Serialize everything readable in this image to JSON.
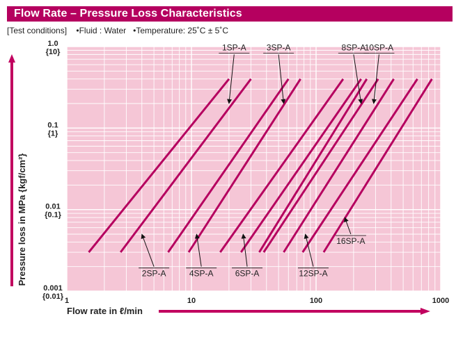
{
  "header": {
    "title": "Flow Rate – Pressure Loss Characteristics"
  },
  "conditions": {
    "label": "[Test conditions]",
    "fluid": "•Fluid : Water",
    "temperature": "•Temperature: 25˚C ± 5˚C"
  },
  "colors": {
    "title_bar": "#b5005f",
    "plot_bg": "#f5c6d6",
    "series": "#b5005f",
    "arrow": "#c1005f"
  },
  "chart_data": {
    "type": "line",
    "xscale": "log",
    "yscale": "log",
    "xlim": [
      1,
      1000
    ],
    "ylim": [
      0.001,
      1.0
    ],
    "grid": true,
    "xlabel": "Flow rate in ℓ/min",
    "ylabel": "Pressure loss in MPa {kgf/cm²}",
    "xticks": [
      {
        "value": 1,
        "label": "1"
      },
      {
        "value": 10,
        "label": "10"
      },
      {
        "value": 100,
        "label": "100"
      },
      {
        "value": 1000,
        "label": "1000"
      }
    ],
    "yticks": [
      {
        "value": 1.0,
        "label": "1.0",
        "sub": "{10}"
      },
      {
        "value": 0.1,
        "label": "0.1",
        "sub": "{1}"
      },
      {
        "value": 0.01,
        "label": "0.01",
        "sub": "{0.1}"
      },
      {
        "value": 0.001,
        "label": "0.001",
        "sub": "{0.01}"
      }
    ],
    "series": [
      {
        "name": "1SP-A",
        "x": [
          1.5,
          20
        ],
        "y": [
          0.003,
          0.4
        ]
      },
      {
        "name": "2SP-A",
        "x": [
          2.7,
          30
        ],
        "y": [
          0.003,
          0.4
        ]
      },
      {
        "name": "3SP-A",
        "x": [
          6.5,
          60
        ],
        "y": [
          0.003,
          0.4
        ]
      },
      {
        "name": "4SP-A",
        "x": [
          9.5,
          75
        ],
        "y": [
          0.003,
          0.4
        ]
      },
      {
        "name": "6SP-A",
        "x": [
          17,
          165
        ],
        "y": [
          0.003,
          0.4
        ]
      },
      {
        "name": "6SP-A ",
        "x": [
          25,
          230
        ],
        "y": [
          0.003,
          0.4
        ]
      },
      {
        "name": "8SP-A",
        "x": [
          35,
          255
        ],
        "y": [
          0.003,
          0.4
        ]
      },
      {
        "name": "10SP-A",
        "x": [
          38,
          315
        ],
        "y": [
          0.003,
          0.4
        ]
      },
      {
        "name": "12SP-A",
        "x": [
          55,
          420
        ],
        "y": [
          0.003,
          0.4
        ]
      },
      {
        "name": "12SP-A ",
        "x": [
          78,
          650
        ],
        "y": [
          0.003,
          0.4
        ]
      },
      {
        "name": "16SP-A",
        "x": [
          115,
          850
        ],
        "y": [
          0.003,
          0.4
        ]
      }
    ],
    "annotations": [
      {
        "text": "1SP-A",
        "from": [
          22,
          0.8
        ],
        "to": [
          20,
          0.2
        ]
      },
      {
        "text": "3SP-A",
        "from": [
          50,
          0.8
        ],
        "to": [
          55,
          0.2
        ]
      },
      {
        "text": "8SP-A",
        "from": [
          200,
          0.8
        ],
        "to": [
          230,
          0.2
        ]
      },
      {
        "text": "10SP-A",
        "from": [
          320,
          0.8
        ],
        "to": [
          290,
          0.2
        ]
      },
      {
        "text": "2SP-A",
        "from": [
          5,
          0.002
        ],
        "to": [
          4,
          0.005
        ]
      },
      {
        "text": "4SP-A",
        "from": [
          12,
          0.002
        ],
        "to": [
          11,
          0.005
        ]
      },
      {
        "text": "6SP-A",
        "from": [
          28,
          0.002
        ],
        "to": [
          26,
          0.005
        ]
      },
      {
        "text": "12SP-A",
        "from": [
          95,
          0.002
        ],
        "to": [
          82,
          0.005
        ]
      },
      {
        "text": "16SP-A",
        "from": [
          190,
          0.005
        ],
        "to": [
          170,
          0.008
        ]
      }
    ]
  }
}
